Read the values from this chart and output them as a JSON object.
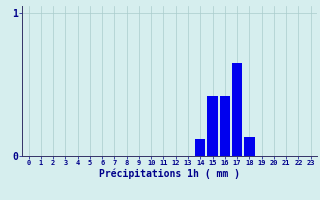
{
  "categories": [
    0,
    1,
    2,
    3,
    4,
    5,
    6,
    7,
    8,
    9,
    10,
    11,
    12,
    13,
    14,
    15,
    16,
    17,
    18,
    19,
    20,
    21,
    22,
    23
  ],
  "values": [
    0,
    0,
    0,
    0,
    0,
    0,
    0,
    0,
    0,
    0,
    0,
    0,
    0,
    0,
    0.12,
    0.42,
    0.42,
    0.65,
    0.13,
    0,
    0,
    0,
    0,
    0
  ],
  "bar_color": "#0000ee",
  "background_color": "#d6eeee",
  "grid_color": "#aacccc",
  "axis_color": "#333366",
  "xlabel": "Précipitations 1h ( mm )",
  "xlabel_color": "#00008b",
  "ylabel_0": "0",
  "ylabel_1": "1",
  "ylim": [
    0,
    1.05
  ],
  "xlim": [
    -0.5,
    23.5
  ],
  "tick_color": "#00008b",
  "grid_linewidth": 0.5,
  "bar_width": 0.85
}
